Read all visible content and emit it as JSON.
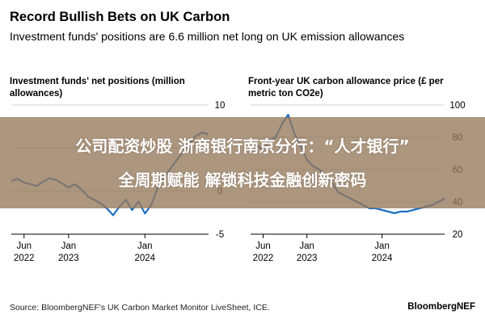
{
  "header": {
    "title": "Record Bullish Bets on UK Carbon",
    "subtitle": "Investment funds' positions are 6.6 million net long on UK emission allowances"
  },
  "footer": {
    "source": "Source: BloombergNEF's UK Carbon Market Monitor LiveSheet, ICE.",
    "brand": "BloombergNEF"
  },
  "overlay": {
    "line1": "公司配资炒股 浙商银行南京分行：“人才银行”",
    "line2": "全周期赋能 解锁科技金融创新密码"
  },
  "colors": {
    "line": "#1e6fc4",
    "grid": "#d0d0d0",
    "overlay": "#96785a"
  },
  "chart_data": [
    {
      "type": "line",
      "title": "Investment funds' net positions (million allowances)",
      "xlabel": "",
      "ylabel": "",
      "ylim": [
        -5,
        10
      ],
      "yticks": [
        10,
        5,
        0,
        -5
      ],
      "xticks": [
        {
          "date": "2022-06",
          "line1": "Jun",
          "line2": "2022"
        },
        {
          "date": "2023-01",
          "line1": "Jan",
          "line2": "2023"
        },
        {
          "date": "2024-01",
          "line1": "Jan",
          "line2": "2024"
        }
      ],
      "xlim": [
        "2022-04",
        "2024-11"
      ],
      "grid": true,
      "series": [
        {
          "x": [
            "2022-04",
            "2022-05",
            "2022-06",
            "2022-07",
            "2022-08",
            "2022-09",
            "2022-10",
            "2022-11",
            "2022-12",
            "2023-01",
            "2023-02",
            "2023-03",
            "2023-04",
            "2023-05",
            "2023-06",
            "2023-07",
            "2023-08",
            "2023-09",
            "2023-10",
            "2023-11",
            "2023-12",
            "2024-01",
            "2024-02",
            "2024-03",
            "2024-04",
            "2024-05",
            "2024-06",
            "2024-07",
            "2024-08",
            "2024-09",
            "2024-10",
            "2024-11"
          ],
          "values": [
            1.2,
            1.4,
            1.0,
            0.8,
            0.6,
            1.1,
            1.5,
            1.3,
            0.9,
            0.4,
            0.8,
            0.2,
            -0.6,
            -1.0,
            -1.4,
            -2.0,
            -2.8,
            -1.8,
            -1.0,
            -2.2,
            -1.2,
            -2.6,
            -1.6,
            0.4,
            1.6,
            2.6,
            3.6,
            4.6,
            5.6,
            6.4,
            6.8,
            6.6
          ]
        }
      ]
    },
    {
      "type": "line",
      "title": "Front-year UK carbon allowance price (£ per metric ton CO2e)",
      "xlabel": "",
      "ylabel": "",
      "ylim": [
        20,
        100
      ],
      "yticks": [
        100,
        80,
        60,
        40,
        20
      ],
      "xticks": [
        {
          "date": "2022-06",
          "line1": "Jun",
          "line2": "2022"
        },
        {
          "date": "2023-01",
          "line1": "Jan",
          "line2": "2023"
        },
        {
          "date": "2024-01",
          "line1": "Jan",
          "line2": "2024"
        }
      ],
      "xlim": [
        "2022-04",
        "2024-11"
      ],
      "grid": true,
      "series": [
        {
          "x": [
            "2022-04",
            "2022-05",
            "2022-06",
            "2022-07",
            "2022-08",
            "2022-09",
            "2022-10",
            "2022-11",
            "2022-12",
            "2023-01",
            "2023-02",
            "2023-03",
            "2023-04",
            "2023-05",
            "2023-06",
            "2023-07",
            "2023-08",
            "2023-09",
            "2023-10",
            "2023-11",
            "2023-12",
            "2024-01",
            "2024-02",
            "2024-03",
            "2024-04",
            "2024-05",
            "2024-06",
            "2024-07",
            "2024-08",
            "2024-09",
            "2024-10",
            "2024-11"
          ],
          "values": [
            70,
            75,
            72,
            78,
            80,
            88,
            94,
            82,
            75,
            66,
            62,
            60,
            56,
            52,
            46,
            44,
            42,
            40,
            38,
            36,
            36,
            35,
            34,
            33,
            34,
            34,
            35,
            36,
            37,
            38,
            40,
            42
          ]
        }
      ]
    }
  ]
}
